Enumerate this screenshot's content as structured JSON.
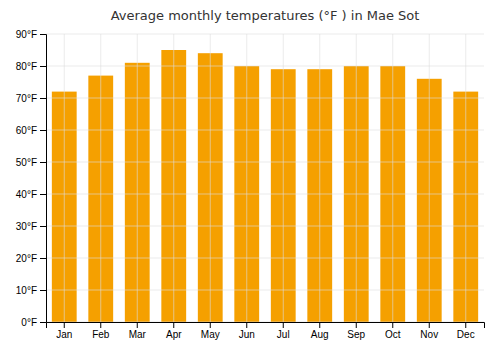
{
  "chart_data": {
    "type": "bar",
    "title": "Average monthly temperatures (°F ) in Mae Sot",
    "categories": [
      "Jan",
      "Feb",
      "Mar",
      "Apr",
      "May",
      "Jun",
      "Jul",
      "Aug",
      "Sep",
      "Oct",
      "Nov",
      "Dec"
    ],
    "values": [
      72,
      77,
      81,
      85,
      84,
      80,
      79,
      79,
      80,
      80,
      76,
      72
    ],
    "color": "#F5A000",
    "ylim": [
      0,
      90
    ],
    "yticks": [
      {
        "value": 0,
        "label": "0°F"
      },
      {
        "value": 10,
        "label": "10°F"
      },
      {
        "value": 20,
        "label": "20°F"
      },
      {
        "value": 30,
        "label": "30°F"
      },
      {
        "value": 40,
        "label": "40°F"
      },
      {
        "value": 50,
        "label": "50°F"
      },
      {
        "value": 60,
        "label": "60°F"
      },
      {
        "value": 70,
        "label": "70°F"
      },
      {
        "value": 80,
        "label": "80°F"
      },
      {
        "value": 90,
        "label": "90°F"
      }
    ],
    "grid": true
  }
}
